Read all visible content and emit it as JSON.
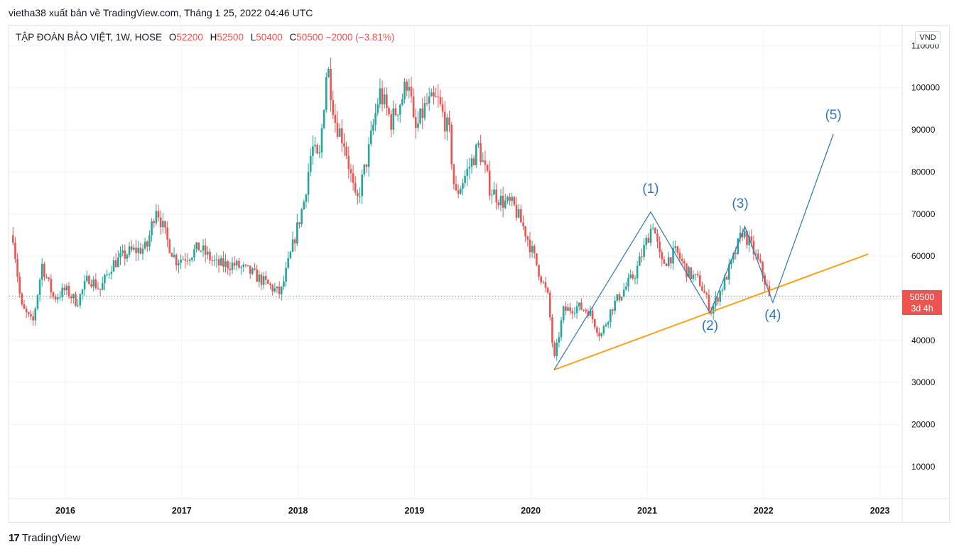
{
  "header": {
    "publish_line": "vietha38 xuất bản về TradingView.com, Tháng 1 25, 2022 04:46 UTC"
  },
  "legend": {
    "symbol": "TẬP ĐOÀN BẢO VIỆT, 1W, HOSE",
    "o_label": "O",
    "o_value": "52200",
    "h_label": "H",
    "h_value": "52500",
    "l_label": "L",
    "l_value": "50400",
    "c_label": "C",
    "c_value": "50500",
    "change": "−2000 (−3.81%)"
  },
  "currency": "VND",
  "last_price": {
    "value": "50500",
    "countdown": "3d 4h"
  },
  "brand": {
    "logo": "17",
    "name": "TradingView"
  },
  "colors": {
    "up": "#26a69a",
    "down": "#ef5350",
    "trend": "#f7a21b",
    "wave": "#2e77b5",
    "grid": "#f0f3fa"
  },
  "chart_data": {
    "type": "candlestick",
    "timeframe": "1W",
    "y_range": [
      2000,
      112000
    ],
    "y_ticks": [
      10000,
      20000,
      30000,
      40000,
      50000,
      60000,
      70000,
      80000,
      90000,
      100000,
      110000
    ],
    "y_tick_labels": [
      "10000",
      "20000",
      "30000",
      "40000",
      "50000",
      "60000",
      "70000",
      "80000",
      "90000",
      "100000",
      "110000"
    ],
    "x_range": [
      2015.55,
      2023.2
    ],
    "x_ticks": [
      2016,
      2017,
      2018,
      2019,
      2020,
      2021,
      2022,
      2023
    ],
    "x_tick_labels": [
      "2016",
      "2017",
      "2018",
      "2019",
      "2020",
      "2021",
      "2022",
      "2023"
    ],
    "price_path": [
      [
        2015.55,
        65000
      ],
      [
        2015.62,
        48000
      ],
      [
        2015.72,
        44000
      ],
      [
        2015.8,
        58000
      ],
      [
        2015.9,
        50000
      ],
      [
        2016.0,
        52000
      ],
      [
        2016.1,
        49000
      ],
      [
        2016.2,
        55000
      ],
      [
        2016.3,
        52000
      ],
      [
        2016.4,
        58000
      ],
      [
        2016.55,
        61000
      ],
      [
        2016.7,
        62000
      ],
      [
        2016.78,
        72000
      ],
      [
        2016.87,
        64000
      ],
      [
        2016.95,
        59000
      ],
      [
        2017.05,
        60000
      ],
      [
        2017.15,
        62000
      ],
      [
        2017.3,
        58000
      ],
      [
        2017.45,
        58000
      ],
      [
        2017.6,
        56000
      ],
      [
        2017.75,
        53000
      ],
      [
        2017.85,
        51000
      ],
      [
        2017.95,
        62000
      ],
      [
        2018.05,
        73000
      ],
      [
        2018.12,
        86000
      ],
      [
        2018.18,
        82000
      ],
      [
        2018.25,
        106000
      ],
      [
        2018.32,
        92000
      ],
      [
        2018.4,
        87000
      ],
      [
        2018.5,
        72000
      ],
      [
        2018.6,
        84000
      ],
      [
        2018.7,
        99000
      ],
      [
        2018.8,
        92000
      ],
      [
        2018.9,
        98000
      ],
      [
        2018.95,
        103000
      ],
      [
        2019.0,
        89000
      ],
      [
        2019.1,
        96000
      ],
      [
        2019.2,
        97000
      ],
      [
        2019.3,
        89000
      ],
      [
        2019.35,
        74000
      ],
      [
        2019.45,
        80000
      ],
      [
        2019.55,
        86000
      ],
      [
        2019.65,
        76000
      ],
      [
        2019.75,
        73000
      ],
      [
        2019.85,
        72000
      ],
      [
        2019.95,
        66000
      ],
      [
        2020.05,
        58000
      ],
      [
        2020.15,
        50000
      ],
      [
        2020.2,
        35000
      ],
      [
        2020.28,
        47000
      ],
      [
        2020.4,
        48000
      ],
      [
        2020.5,
        47000
      ],
      [
        2020.6,
        41000
      ],
      [
        2020.7,
        48000
      ],
      [
        2020.8,
        52000
      ],
      [
        2020.9,
        56000
      ],
      [
        2021.0,
        64000
      ],
      [
        2021.05,
        68000
      ],
      [
        2021.12,
        58000
      ],
      [
        2021.25,
        61000
      ],
      [
        2021.35,
        56000
      ],
      [
        2021.45,
        54000
      ],
      [
        2021.55,
        47000
      ],
      [
        2021.65,
        53000
      ],
      [
        2021.75,
        60000
      ],
      [
        2021.82,
        66000
      ],
      [
        2021.9,
        62000
      ],
      [
        2021.98,
        57000
      ],
      [
        2022.05,
        50500
      ]
    ],
    "trendline": [
      [
        2020.2,
        33000
      ],
      [
        2022.9,
        60500
      ]
    ],
    "wave_path": [
      [
        2020.2,
        33000
      ],
      [
        2021.03,
        70500
      ],
      [
        2021.54,
        46500
      ],
      [
        2021.84,
        67000
      ],
      [
        2022.08,
        49000
      ],
      [
        2022.6,
        89000
      ]
    ],
    "wave_labels": [
      {
        "text": "(1)",
        "x": 2021.03,
        "y": 75000
      },
      {
        "text": "(2)",
        "x": 2021.54,
        "y": 42500
      },
      {
        "text": "(3)",
        "x": 2021.8,
        "y": 71500
      },
      {
        "text": "(4)",
        "x": 2022.08,
        "y": 45000
      },
      {
        "text": "(5)",
        "x": 2022.6,
        "y": 92500
      }
    ],
    "last_close": 50500
  }
}
